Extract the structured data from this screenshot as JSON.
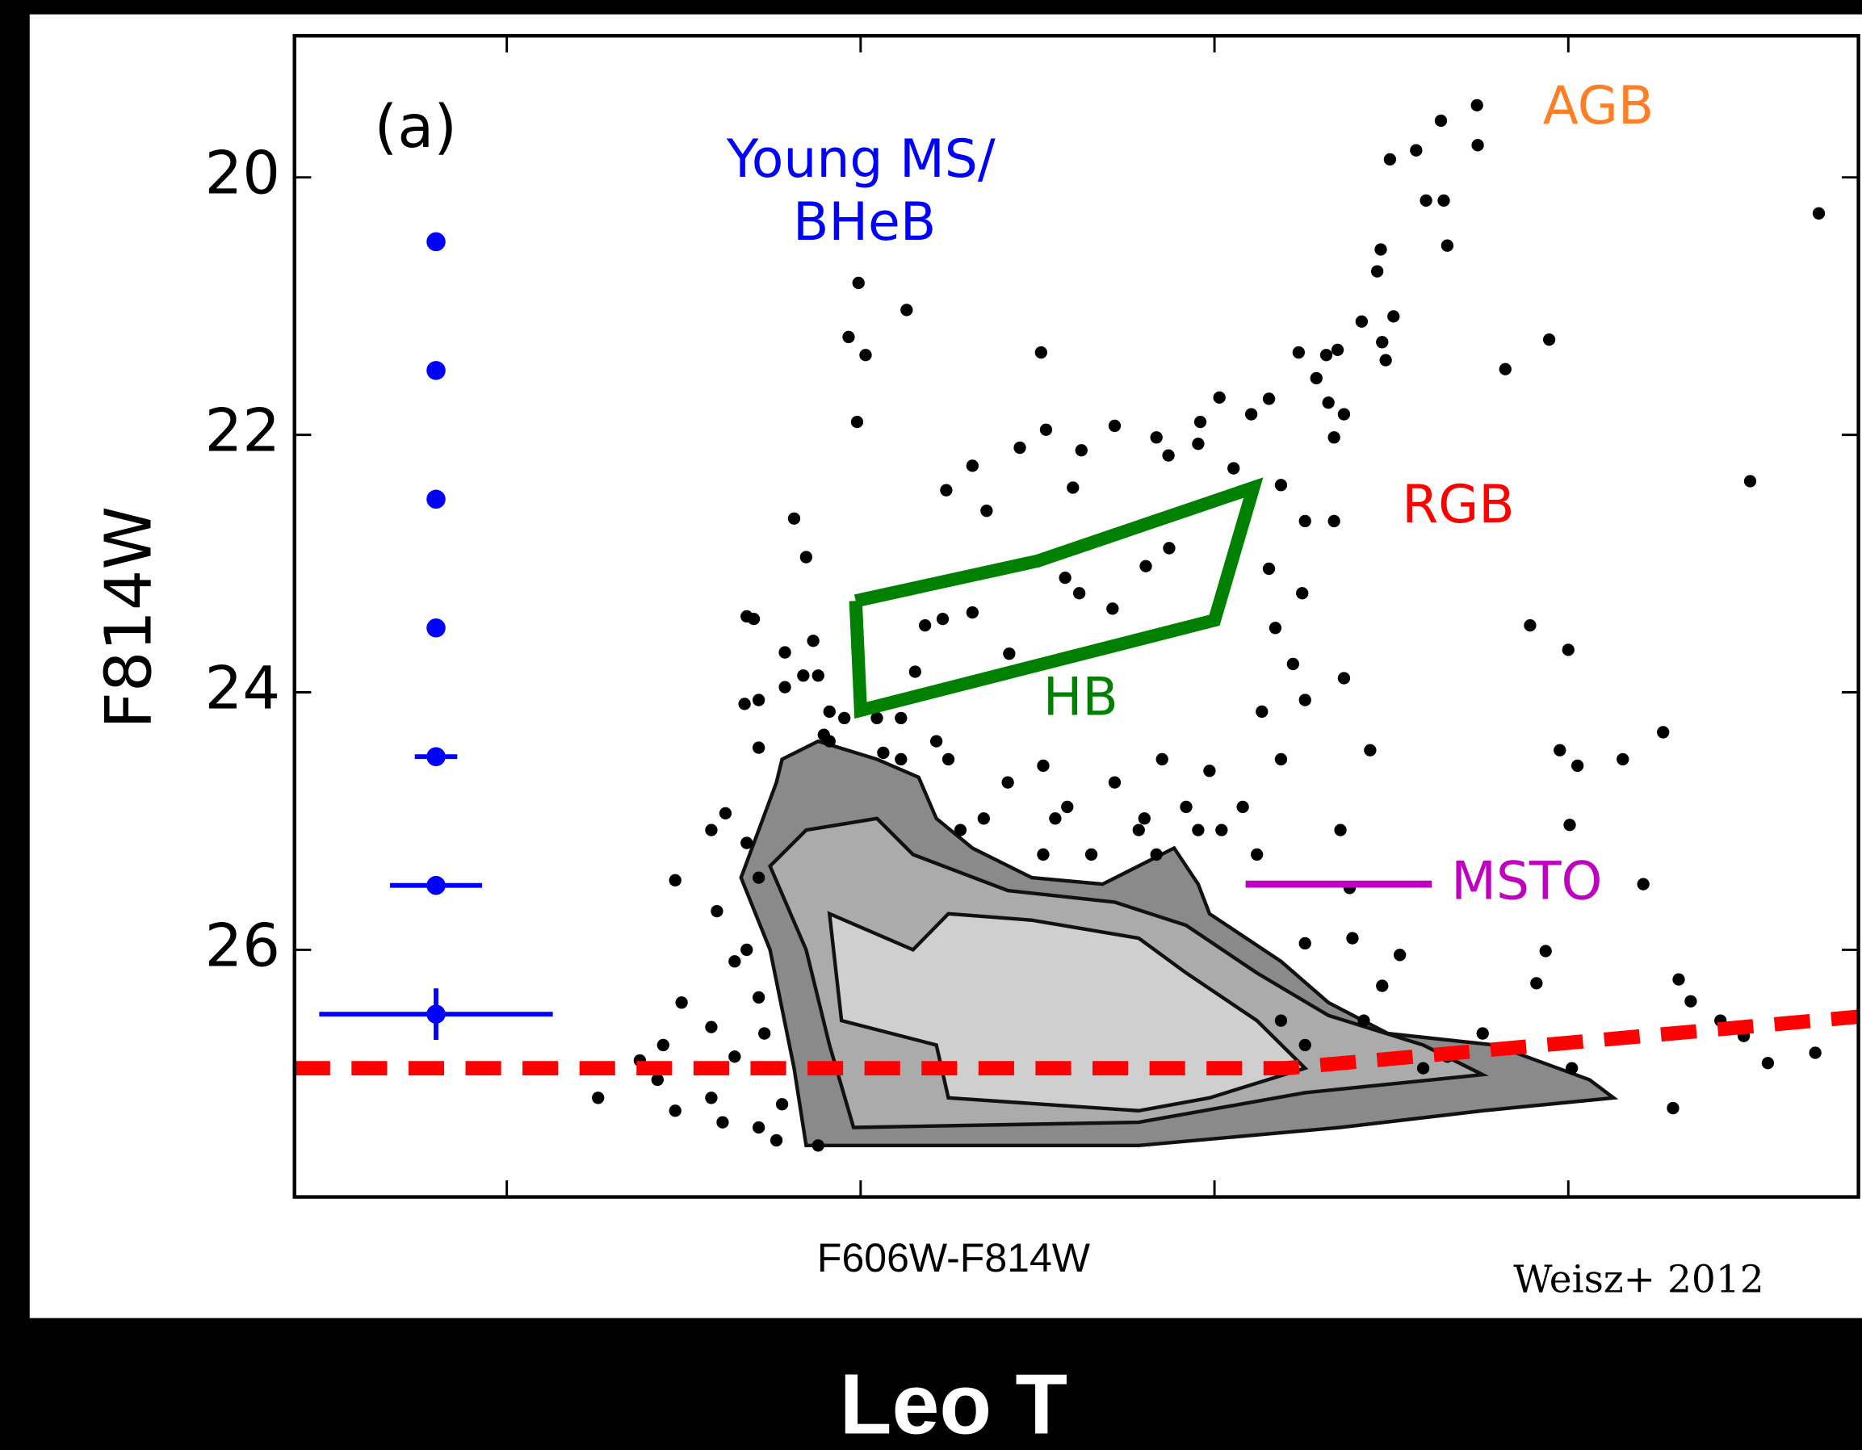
{
  "chart_data": {
    "type": "scatter",
    "title": "Leo T",
    "panel_label": "(a)",
    "x_label": "F606W-F814W",
    "y_label": "F814W",
    "credit": "Weisz+ 2012",
    "xlim": [
      -0.8,
      1.41
    ],
    "ylim": [
      27.92,
      18.9
    ],
    "xticks": [
      -0.5,
      0,
      0.5,
      1
    ],
    "yticks": [
      20,
      22,
      24,
      26
    ],
    "annotations": [
      {
        "text": "Young MS/",
        "color": "#0000ff"
      },
      {
        "text": "BHeB",
        "color": "#0000ff"
      },
      {
        "text": "AGB",
        "color": "#ff7f27"
      },
      {
        "text": "RGB",
        "color": "#ff0000"
      },
      {
        "text": "HB",
        "color": "#008000"
      },
      {
        "text": "MSTO",
        "color": "#bf00bf"
      }
    ],
    "contours": [
      {
        "color": "#8a8a8a",
        "x": [
          -0.111,
          -0.06,
          0.023,
          0.082,
          0.107,
          0.158,
          0.242,
          0.342,
          0.443,
          0.477,
          0.493,
          0.594,
          0.661,
          0.745,
          0.896,
          1.03,
          1.064,
          0.879,
          0.678,
          0.393,
          -0.077,
          -0.094,
          -0.128,
          -0.169,
          -0.144,
          -0.119
        ],
        "y": [
          24.52,
          24.38,
          24.52,
          24.66,
          24.98,
          25.21,
          25.44,
          25.49,
          25.21,
          25.49,
          25.72,
          26.09,
          26.41,
          26.65,
          26.74,
          27.01,
          27.15,
          27.25,
          27.38,
          27.52,
          27.52,
          26.92,
          26.0,
          25.44,
          25.07,
          24.7
        ]
      },
      {
        "color": "#ababab",
        "x": [
          -0.077,
          0.023,
          0.074,
          0.208,
          0.359,
          0.46,
          0.56,
          0.661,
          0.795,
          0.879,
          0.628,
          0.393,
          -0.01,
          -0.044,
          -0.077,
          -0.128
        ],
        "y": [
          25.07,
          24.98,
          25.26,
          25.54,
          25.63,
          25.81,
          26.18,
          26.51,
          26.74,
          26.97,
          27.11,
          27.34,
          27.38,
          26.74,
          26.0,
          25.35
        ]
      },
      {
        "color": "#cfcfcf",
        "x": [
          -0.044,
          0.074,
          0.124,
          0.242,
          0.393,
          0.46,
          0.56,
          0.628,
          0.493,
          0.393,
          0.258,
          0.124,
          0.107,
          -0.027
        ],
        "y": [
          25.72,
          26.0,
          25.72,
          25.77,
          25.91,
          26.18,
          26.55,
          26.92,
          27.15,
          27.25,
          27.2,
          27.15,
          26.74,
          26.55
        ]
      }
    ],
    "stars": {
      "color": "#000000",
      "x": [
        0.871,
        0.82,
        0.872,
        0.785,
        0.748,
        0.799,
        0.824,
        0.829,
        0.735,
        0.73,
        0.753,
        0.708,
        0.737,
        0.742,
        1.354,
        0.973,
        0.911,
        1.257,
        -0.003,
        0.065,
        -0.017,
        0.007,
        -0.005,
        0.255,
        0.674,
        0.658,
        0.619,
        0.644,
        0.661,
        0.683,
        0.669,
        0.507,
        0.577,
        0.552,
        0.48,
        0.359,
        0.418,
        0.435,
        0.262,
        0.225,
        0.312,
        0.3,
        0.158,
        0.121,
        0.178,
        -0.094,
        -0.077,
        0.477,
        0.527,
        0.594,
        0.628,
        0.669,
        0.577,
        0.624,
        0.586,
        0.611,
        0.628,
        0.567,
        0.594,
        0.54,
        0.493,
        0.51,
        0.56,
        0.678,
        0.691,
        0.72,
        0.683,
        0.946,
        1.0,
        1.134,
        0.988,
        1.013,
        1.077,
        1.002,
        1.106,
        0.968,
        0.955,
        1.156,
        1.173,
        1.215,
        1.248,
        1.282,
        1.349,
        1.148,
        1.005,
        0.762,
        0.737,
        0.628,
        0.695,
        0.594,
        0.628,
        0.795,
        0.879,
        0.829,
        0.711,
        0.356,
        0.403,
        0.289,
        0.309,
        0.436,
        0.21,
        0.158,
        0.116,
        0.091,
        0.077,
        -0.161,
        -0.151,
        -0.067,
        -0.107,
        -0.06,
        -0.081,
        -0.107,
        -0.144,
        -0.164,
        -0.044,
        -0.052,
        -0.023,
        0.023,
        0.057,
        0.107,
        0.124,
        0.208,
        0.258,
        0.292,
        0.359,
        0.426,
        0.393,
        0.326,
        0.275,
        0.174,
        0.141,
        0.258,
        0.057,
        0.032,
        -0.044,
        -0.144,
        -0.191,
        -0.211,
        -0.262,
        -0.161,
        -0.144,
        -0.203,
        -0.161,
        -0.178,
        -0.253,
        -0.211,
        -0.279,
        -0.312,
        -0.371,
        -0.287,
        -0.262,
        -0.211,
        -0.195,
        -0.144,
        -0.136,
        -0.144,
        -0.128,
        -0.111,
        -0.06,
        -0.119,
        -0.178,
        0.46,
        0.477,
        0.401,
        0.418
      ],
      "y": [
        19.44,
        19.56,
        19.75,
        19.79,
        19.86,
        20.18,
        20.18,
        20.53,
        20.56,
        20.73,
        21.08,
        21.12,
        21.28,
        21.42,
        20.28,
        21.26,
        21.49,
        22.36,
        20.82,
        21.03,
        21.24,
        21.38,
        21.9,
        21.36,
        21.34,
        21.38,
        21.36,
        21.56,
        21.75,
        21.84,
        22.02,
        21.71,
        21.72,
        21.84,
        21.9,
        21.93,
        22.02,
        22.16,
        21.96,
        22.1,
        22.12,
        22.41,
        22.24,
        22.43,
        22.59,
        22.65,
        22.95,
        22.07,
        22.26,
        22.39,
        22.67,
        22.67,
        23.04,
        23.23,
        23.5,
        23.78,
        24.06,
        24.15,
        24.52,
        24.89,
        24.61,
        25.07,
        25.26,
        25.07,
        25.52,
        24.45,
        23.89,
        23.48,
        23.67,
        24.31,
        24.45,
        24.57,
        24.52,
        25.03,
        25.49,
        26.01,
        26.26,
        26.23,
        26.4,
        26.55,
        26.67,
        26.88,
        26.8,
        27.23,
        26.92,
        26.04,
        26.28,
        25.95,
        25.91,
        26.55,
        26.74,
        26.92,
        26.65,
        26.83,
        26.55,
        23.35,
        23.02,
        23.11,
        23.23,
        22.88,
        23.7,
        23.38,
        23.43,
        23.48,
        23.84,
        23.41,
        23.43,
        23.6,
        23.69,
        23.87,
        23.87,
        23.96,
        24.06,
        24.09,
        24.15,
        24.33,
        24.2,
        24.2,
        24.2,
        24.38,
        24.52,
        24.7,
        24.57,
        24.89,
        24.7,
        24.52,
        25.07,
        25.26,
        24.98,
        24.98,
        25.07,
        25.26,
        24.52,
        24.47,
        24.38,
        24.43,
        24.94,
        25.07,
        25.46,
        25.17,
        25.44,
        25.7,
        26.0,
        26.09,
        26.41,
        26.6,
        26.74,
        26.86,
        27.15,
        27.01,
        27.25,
        27.15,
        27.34,
        27.38,
        26.65,
        26.37,
        26.92,
        27.2,
        27.52,
        27.48,
        26.83,
        24.89,
        25.07,
        24.98,
        25.26
      ]
    },
    "error_bars": {
      "color": "#0000ff",
      "x": [
        -0.6,
        -0.6,
        -0.6,
        -0.6,
        -0.6,
        -0.6,
        -0.6
      ],
      "y": [
        20.5,
        21.5,
        22.5,
        23.5,
        24.5,
        25.5,
        26.5
      ],
      "xerr": [
        0,
        0,
        0,
        0,
        0.03,
        0.065,
        0.165
      ],
      "yerr": [
        0,
        0,
        0,
        0,
        0,
        0.04,
        0.2
      ]
    },
    "completeness_limit": {
      "color": "#ff0000",
      "x": [
        -0.8,
        0.6,
        1.41
      ],
      "y": [
        26.92,
        26.92,
        26.52
      ]
    },
    "hb_box": {
      "color": "#008000",
      "x": [
        -0.007,
        0.25,
        0.555,
        0.5,
        0,
        -0.007
      ],
      "y": [
        23.29,
        22.98,
        22.41,
        23.44,
        24.14,
        23.29
      ]
    },
    "msto_line": {
      "color": "#bf00bf",
      "x": [
        0.544,
        0.807
      ],
      "y": [
        25.49,
        25.49
      ]
    }
  }
}
